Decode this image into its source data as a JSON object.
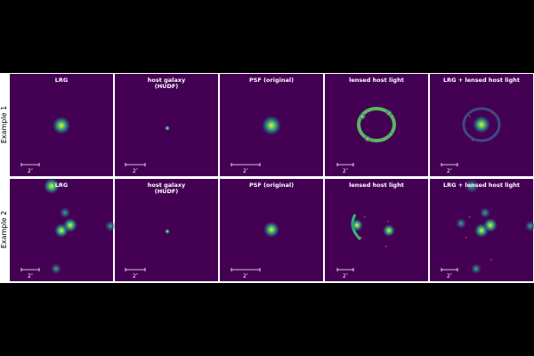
{
  "rows": [
    {
      "label": "Example 1",
      "panels": [
        {
          "title": [
            "LRG"
          ],
          "scale": "2″"
        },
        {
          "title": [
            "host galaxy",
            "(HUDF)"
          ],
          "scale": "2″"
        },
        {
          "title": [
            "PSF (original)"
          ],
          "scale": "2″"
        },
        {
          "title": [
            "lensed host light"
          ],
          "scale": "2″"
        },
        {
          "title": [
            "LRG + lensed host light"
          ],
          "scale": "2″"
        }
      ]
    },
    {
      "label": "Example 2",
      "panels": [
        {
          "title": [
            "LRG"
          ],
          "scale": "2″"
        },
        {
          "title": [
            "host galaxy",
            "(HUDF)"
          ],
          "scale": "2″"
        },
        {
          "title": [
            "PSF (original)"
          ],
          "scale": "2″"
        },
        {
          "title": [
            "lensed host light"
          ],
          "scale": "2″"
        },
        {
          "title": [
            "LRG + lensed host light"
          ],
          "scale": "2″"
        }
      ]
    }
  ]
}
